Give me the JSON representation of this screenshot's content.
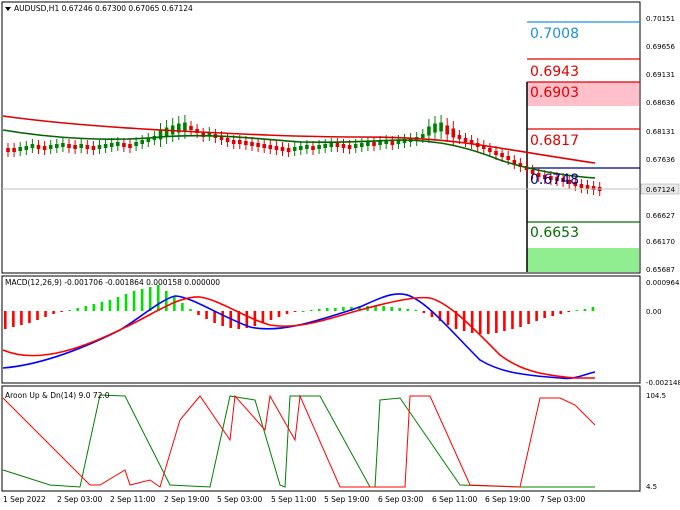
{
  "main": {
    "header": "AUDUSD,H1  0.67246 0.67300 0.67065 0.67124",
    "price_labels": [
      "0.70151",
      "0.69656",
      "0.69131",
      "0.68636",
      "0.68131",
      "0.67636",
      "0.67124",
      "0.66627",
      "0.66170",
      "0.65687"
    ],
    "current_price": "0.67124",
    "levels": [
      {
        "label": "0.7008",
        "value": 0.7008,
        "color": "#1e90e0"
      },
      {
        "label": "0.6943",
        "value": 0.6943,
        "color": "#e00000"
      },
      {
        "label": "0.6903",
        "value": 0.6903,
        "color": "#e00000"
      },
      {
        "label": "0.6817",
        "value": 0.6817,
        "color": "#e00000"
      },
      {
        "label": "0.6748",
        "value": 0.6748,
        "color": "#000080"
      },
      {
        "label": "0.6653",
        "value": 0.6653,
        "color": "#007000"
      }
    ]
  },
  "macd": {
    "header": "MACD(12,26,9) -0.001706 -0.001864 0.000158 0.000000",
    "labels": [
      "0.000964",
      "0.00",
      "-0.002148"
    ]
  },
  "aroon": {
    "header": "Aroon Up & Dn(14) 9.0 72.0",
    "labels": [
      "104.5",
      "4.5"
    ]
  },
  "time_labels": [
    "1 Sep 2022",
    "2 Sep 03:00",
    "2 Sep 11:00",
    "2 Sep 19:00",
    "5 Sep 03:00",
    "5 Sep 11:00",
    "5 Sep 19:00",
    "6 Sep 03:00",
    "6 Sep 11:00",
    "6 Sep 19:00",
    "7 Sep 03:00"
  ],
  "colors": {
    "bull": "#008000",
    "bear": "#e00000",
    "ma_red": "#e00000",
    "ma_green": "#006400",
    "macd_blue": "#0000ff",
    "macd_red": "#ff0000",
    "hist_pos": "#00e000",
    "hist_neg": "#ff0000",
    "aroon_up": "#008000",
    "aroon_dn": "#ff0000",
    "pink_zone": "#ffc0cb",
    "green_zone": "#90ee90"
  }
}
